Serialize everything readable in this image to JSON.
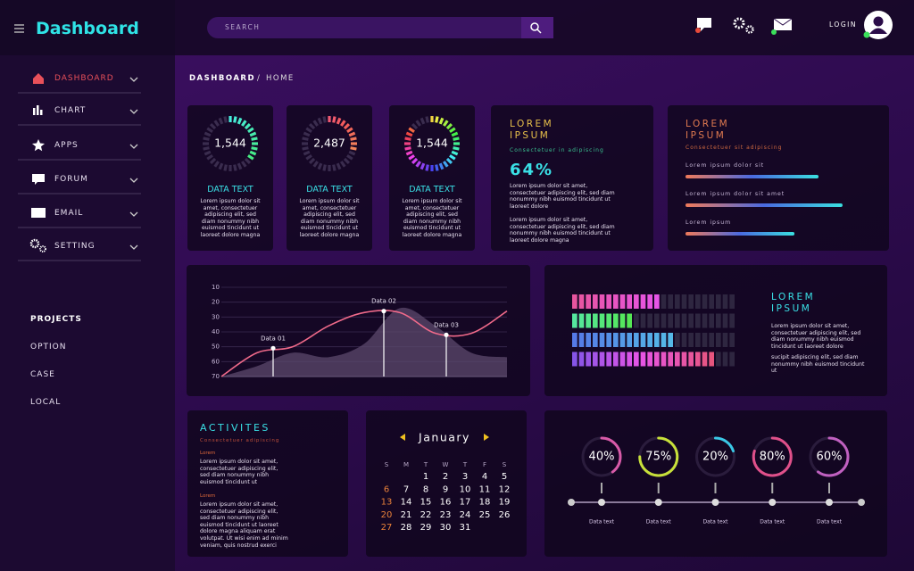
{
  "header": {
    "title": "Dashboard",
    "search": "SEARCH",
    "login": "LOGIN"
  },
  "sidebar": {
    "menu": [
      "DASHBOARD",
      "CHART",
      "APPS",
      "FORUM",
      "EMAIL",
      "SETTING"
    ],
    "projects_title": "PROJECTS",
    "projects": [
      "OPTION",
      "CASE",
      "LOCAL"
    ]
  },
  "breadcrumb": {
    "section": "DASHBOARD",
    "separator": "/",
    "page": "HOME"
  },
  "gauges": [
    {
      "value": "1,544",
      "title": "DATA TEXT",
      "text": "Lorem ipsum dolor sit amet, consectetuer adipiscing elit, sed diam nonummy nibh euismod tincidunt ut laoreet dolore magna"
    },
    {
      "value": "2,487",
      "title": "DATA TEXT",
      "text": "Lorem ipsum dolor sit amet, consectetuer adipiscing elit, sed diam nonummy nibh euismod tincidunt ut laoreet dolore magna"
    },
    {
      "value": "1,544",
      "title": "DATA TEXT",
      "text": "Lorem ipsum dolor sit amet, consectetuer adipiscing elit, sed diam nonummy nibh euismod tincidunt ut laoreet dolore magna"
    }
  ],
  "stat_card": {
    "title": "LOREM IPSUM",
    "subtitle": "Consectetuer in adipiscing",
    "value": "64%",
    "paragraphs": [
      "Lorem ipsum dolor sit amet, consectetuer adipiscing elit, sed diam nonummy nibh euismod tincidunt ut laoreet dolore",
      "Lorem ipsum dolor sit amet, consectetuer adipiscing elit, sed diam nonummy nibh euismod tincidunt ut laoreet dolore magna"
    ]
  },
  "progress_card": {
    "title": "LOREM IPSUM",
    "subtitle": "Consectetuer sit adipiscing",
    "bars": [
      {
        "label": "Lorem ipsum dolor sit",
        "value": 72
      },
      {
        "label": "Lorem ipsum dolor sit amet",
        "value": 85
      },
      {
        "label": "Lorem ipsum",
        "value": 59
      }
    ]
  },
  "line_chart": {
    "ylim": [
      10,
      70
    ],
    "yticks": [
      10,
      20,
      30,
      40,
      50,
      60,
      70
    ],
    "xlim": [
      0,
      8
    ],
    "x": [
      0,
      1,
      2,
      3,
      4,
      5,
      6,
      7,
      8
    ],
    "line": {
      "color": "#f06a8a",
      "values": [
        70,
        54,
        50,
        36,
        27,
        27,
        41,
        41,
        26
      ]
    },
    "area": {
      "color": "#5c4a6c",
      "values": [
        70,
        63,
        54,
        57,
        48,
        24,
        36,
        54,
        57
      ]
    },
    "points": [
      {
        "label": "Data 01",
        "x": 1.45,
        "y": 51
      },
      {
        "label": "Data 02",
        "x": 4.55,
        "y": 26
      },
      {
        "label": "Data 03",
        "x": 6.3,
        "y": 42
      }
    ]
  },
  "equalizer": {
    "segments": 24,
    "rows": [
      {
        "lit": 13
      },
      {
        "lit": 9
      },
      {
        "lit": 15
      },
      {
        "lit": 21
      }
    ],
    "title": "LOREM IPSUM",
    "paragraphs": [
      "Lorem ipsum dolor sit amet, consectetuer adipiscing elit, sed diam nonummy nibh euismod tincidunt ut laoreet dolore",
      "sucipit adipiscing elit, sed diam nonummy nibh euismod tincidunt ut"
    ]
  },
  "activities": {
    "title": "ACTIVITES",
    "subtitle": "Consectetuer adipiscing",
    "items": [
      {
        "title": "Lorem",
        "text": "Lorem ipsum dolor sit amet, consectetuer adipiscing elit, sed diam nonummy nibh euismod tincidunt ut"
      },
      {
        "title": "Lorem",
        "text": "Lorem ipsum dolor sit amet, consectetuer adipiscing elit, sed diam nonummy nibh euismod tincidunt ut laoreet dolore magna aliquam erat volutpat. Ut wisi enim ad minim veniam, quis nostrud exerci"
      }
    ]
  },
  "calendar": {
    "month": "January",
    "weekdays": [
      "S",
      "M",
      "T",
      "W",
      "T",
      "F",
      "S"
    ],
    "weeks": [
      [
        null,
        null,
        1,
        2,
        3,
        4,
        5
      ],
      [
        6,
        7,
        8,
        9,
        10,
        11,
        12
      ],
      [
        13,
        14,
        15,
        16,
        17,
        18,
        19
      ],
      [
        20,
        21,
        22,
        23,
        24,
        25,
        26
      ],
      [
        27,
        28,
        29,
        30,
        31,
        null,
        null
      ]
    ]
  },
  "progress_rings": {
    "items": [
      {
        "value": 40,
        "value_label": "40%",
        "label": "Data text"
      },
      {
        "value": 75,
        "value_label": "75%",
        "label": "Data text"
      },
      {
        "value": 20,
        "value_label": "20%",
        "label": "Data text"
      },
      {
        "value": 80,
        "value_label": "80%",
        "label": "Data text"
      },
      {
        "value": 60,
        "value_label": "60%",
        "label": "Data text"
      }
    ]
  }
}
